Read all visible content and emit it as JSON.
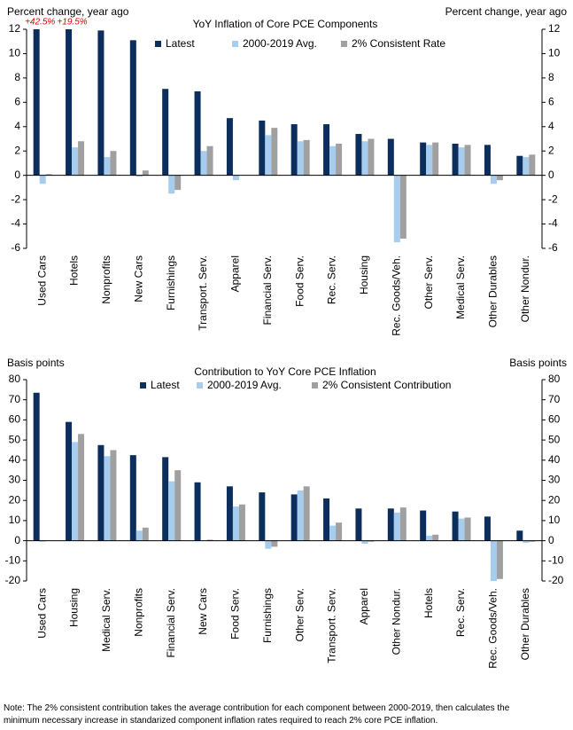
{
  "chart_data": [
    {
      "type": "bar",
      "title": "YoY Inflation of Core PCE Components",
      "ylabel": "Percent change, year ago",
      "categories": [
        "Used Cars",
        "Hotels",
        "Nonprofits",
        "New Cars",
        "Furnishings",
        "Transport. Serv.",
        "Apparel",
        "Financial Serv.",
        "Food Serv.",
        "Rec. Serv.",
        "Housing",
        "Rec. Goods/Veh.",
        "Other Serv.",
        "Medical Serv.",
        "Other Durables",
        "Other Nondur."
      ],
      "series": [
        {
          "name": "Latest",
          "color": "#0c2e5c",
          "values": [
            42.5,
            19.5,
            11.9,
            11.1,
            7.1,
            6.9,
            4.7,
            4.5,
            4.2,
            4.2,
            3.4,
            3.0,
            2.7,
            2.6,
            2.5,
            1.6
          ],
          "value_labels": [
            "+42.5%",
            "+19.5%",
            null,
            null,
            null,
            null,
            null,
            null,
            null,
            null,
            null,
            null,
            null,
            null,
            null,
            null
          ]
        },
        {
          "name": "2000-2019 Avg.",
          "color": "#a6cdee",
          "values": [
            -0.7,
            2.3,
            1.5,
            -0.1,
            -1.5,
            2.0,
            -0.4,
            3.3,
            2.8,
            2.4,
            2.8,
            -5.5,
            2.5,
            2.3,
            -0.7,
            1.5
          ]
        },
        {
          "name": "2% Consistent Rate",
          "color": "#a0a0a0",
          "values": [
            0.1,
            2.8,
            2.0,
            0.4,
            -1.2,
            2.4,
            0.0,
            3.9,
            2.9,
            2.6,
            3.0,
            -5.2,
            2.7,
            2.5,
            -0.4,
            1.7
          ]
        }
      ],
      "ylim": [
        -6,
        12
      ],
      "yticks": [
        -6,
        -4,
        -2,
        0,
        2,
        4,
        6,
        8,
        10,
        12
      ]
    },
    {
      "type": "bar",
      "title": "Contribution to YoY Core PCE Inflation",
      "ylabel": "Basis points",
      "categories": [
        "Used Cars",
        "Housing",
        "Medical Serv.",
        "Nonprofits",
        "Financial Serv.",
        "New Cars",
        "Food Serv.",
        "Furnishings",
        "Other Serv.",
        "Transport. Serv.",
        "Apparel",
        "Other Nondur.",
        "Hotels",
        "Rec. Serv.",
        "Rec. Goods/Veh.",
        "Other Durables"
      ],
      "series": [
        {
          "name": "Latest",
          "color": "#0c2e5c",
          "values": [
            73.5,
            59,
            47.5,
            42.5,
            41.5,
            29,
            27,
            24,
            23,
            21,
            16,
            16,
            15,
            14.5,
            12,
            5
          ]
        },
        {
          "name": "2000-2019 Avg.",
          "color": "#a6cdee",
          "values": [
            -0.5,
            49,
            42,
            5,
            29.5,
            0,
            17,
            -4,
            25,
            7.5,
            -1.5,
            14,
            2.5,
            11,
            -20,
            -1
          ]
        },
        {
          "name": "2% Consistent Contribution",
          "color": "#a0a0a0",
          "values": [
            0,
            53,
            45,
            6.5,
            35,
            0.5,
            18,
            -3,
            27,
            9,
            -0.5,
            16.5,
            3,
            11.5,
            -19,
            -0.5
          ]
        }
      ],
      "ylim": [
        -20,
        80
      ],
      "yticks": [
        -20,
        -10,
        0,
        10,
        20,
        30,
        40,
        50,
        60,
        70,
        80
      ]
    }
  ],
  "note": [
    "Note: The 2% consistent contribution takes the average contribution for each component between 2000-2019, then calculates the",
    "minimum necessary increase in standarized component inflation rates required to reach 2% core PCE inflation."
  ]
}
